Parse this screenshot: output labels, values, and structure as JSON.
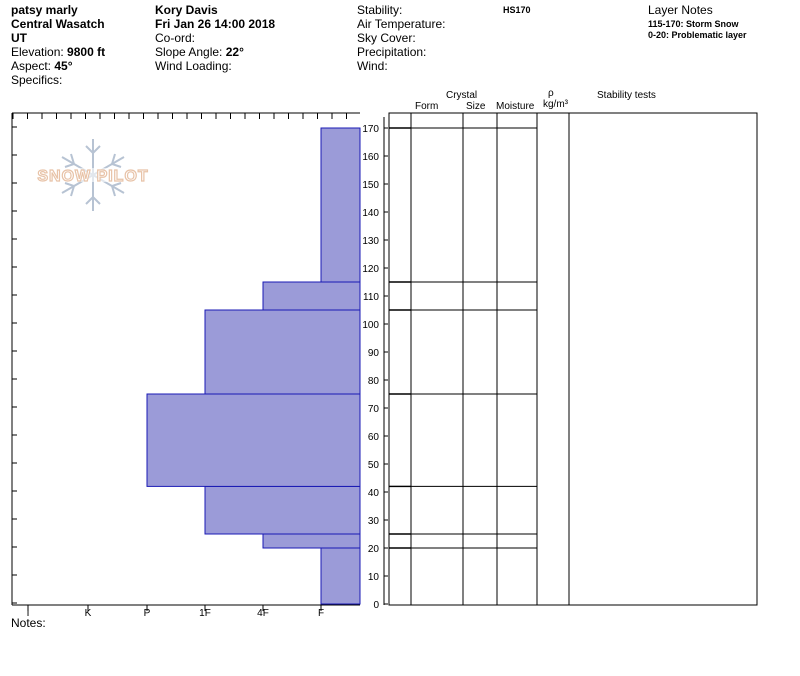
{
  "profile": {
    "observer": "patsy marly",
    "range": "Central Wasatch",
    "state": "UT",
    "elevation_label": "Elevation:",
    "elevation_value": "9800 ft",
    "aspect_label": "Aspect:",
    "aspect_value": "45°",
    "specifics_label": "Specifics:",
    "author": "Kory Davis",
    "date": "Fri Jan 26 14:00 2018",
    "coord_label": "Co-ord:",
    "slope_label": "Slope Angle:",
    "slope_value": "22°",
    "wind_loading_label": "Wind Loading:",
    "stability_label": "Stability:",
    "hs": "HS170",
    "air_temp_label": "Air Temperature:",
    "sky_cover_label": "Sky Cover:",
    "precip_label": "Precipitation:",
    "wind_label": "Wind:",
    "notes_label": "Notes:"
  },
  "layer_notes": {
    "title": "Layer Notes",
    "items": [
      "115-170: Storm Snow",
      "0-20: Problematic layer"
    ]
  },
  "columns": {
    "crystal": "Crystal",
    "form": "Form",
    "size": "Size",
    "moisture": "Moisture",
    "rho": "ρ",
    "density_unit": "kg/m³",
    "stability_tests": "Stability tests"
  },
  "logo": {
    "text": "SNOW PILOT"
  },
  "colors": {
    "hardness_fill": "#9b9bd8",
    "hardness_stroke": "#1a1ab4"
  },
  "chart_data": {
    "type": "bar",
    "orientation": "horizontal",
    "title": "",
    "xlabel": "",
    "ylabel": "",
    "hardness_scale": [
      "I",
      "K",
      "P",
      "1F",
      "4F",
      "F"
    ],
    "y_ticks": [
      0,
      10,
      20,
      30,
      40,
      50,
      60,
      70,
      80,
      90,
      100,
      110,
      120,
      130,
      140,
      150,
      160,
      170
    ],
    "ylim": [
      0,
      175
    ],
    "layers": [
      {
        "bottom": 0,
        "top": 20,
        "hardness": "F"
      },
      {
        "bottom": 20,
        "top": 25,
        "hardness": "4F"
      },
      {
        "bottom": 25,
        "top": 42,
        "hardness": "1F"
      },
      {
        "bottom": 42,
        "top": 75,
        "hardness": "P"
      },
      {
        "bottom": 75,
        "top": 105,
        "hardness": "1F"
      },
      {
        "bottom": 105,
        "top": 115,
        "hardness": "4F"
      },
      {
        "bottom": 115,
        "top": 170,
        "hardness": "F"
      }
    ],
    "layer_boundaries": [
      170,
      115,
      105,
      75,
      42,
      25,
      20
    ]
  }
}
